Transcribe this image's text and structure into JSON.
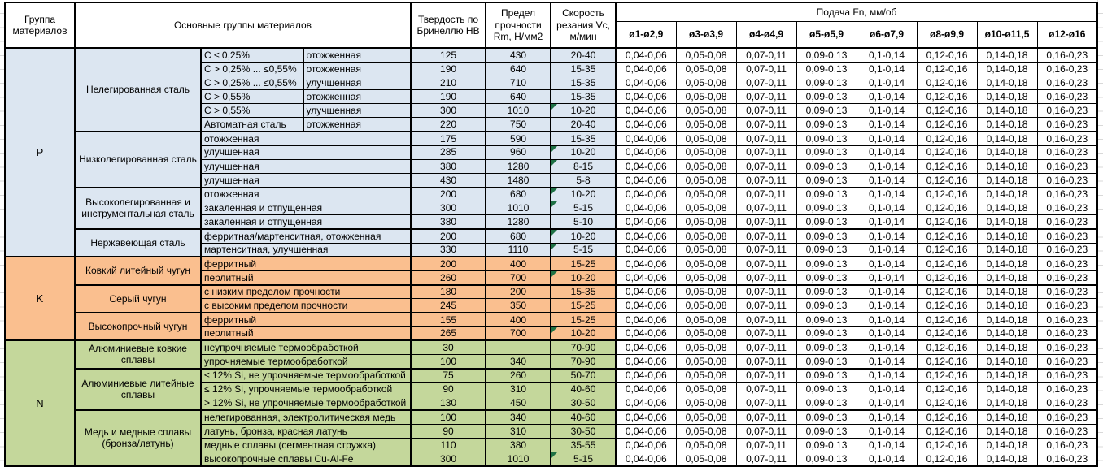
{
  "header": {
    "col_group": "Группа материалов",
    "col_materials": "Основные группы материалов",
    "col_hardness": "Твердость по Бринеллю НВ",
    "col_strength": "Предел прочности Rm, Н/мм2",
    "col_speed": "Скорость резания Vc, м/мин",
    "feed_title": "Подача Fn, мм/об",
    "feed_cols": [
      "ø1-ø2,9",
      "ø3-ø3,9",
      "ø4-ø4,9",
      "ø5-ø5,9",
      "ø6-ø7,9",
      "ø8-ø9,9",
      "ø10-ø11,5",
      "ø12-ø16"
    ]
  },
  "feed_values": [
    "0,04-0,06",
    "0,05-0,08",
    "0,07-0,11",
    "0,09-0,13",
    "0,1-0,14",
    "0,12-0,16",
    "0,14-0,18",
    "0,16-0,23"
  ],
  "colors": {
    "group_p_fill": "#dce6f1",
    "group_k_fill": "#fabf8f",
    "group_n_fill": "#c4d79b",
    "note_indicator": "#1F7145",
    "border": "#000000"
  },
  "groups": [
    {
      "letter": "P",
      "fill": "#dce6f1",
      "subgroups": [
        {
          "name": "Нелегированная сталь",
          "rows": [
            {
              "cond": "C ≤ 0,25%",
              "state": "отожженная",
              "hb": "125",
              "rm": "430",
              "vc": "20-40",
              "note": false
            },
            {
              "cond": "C > 0,25% ... ≤0,55%",
              "state": "отожженная",
              "hb": "190",
              "rm": "640",
              "vc": "15-35",
              "note": false
            },
            {
              "cond": "C > 0,25% ... ≤0,55%",
              "state": "улучшенная",
              "hb": "210",
              "rm": "710",
              "vc": "15-35",
              "note": false
            },
            {
              "cond": "C > 0,55%",
              "state": "отожженная",
              "hb": "190",
              "rm": "640",
              "vc": "15-35",
              "note": false
            },
            {
              "cond": "C > 0,55%",
              "state": "улучшенная",
              "hb": "300",
              "rm": "1010",
              "vc": "10-20",
              "note": true
            },
            {
              "cond": "Автоматная сталь",
              "state": "отожженная",
              "hb": "220",
              "rm": "750",
              "vc": "20-40",
              "note": false
            }
          ]
        },
        {
          "name": "Низколегированная сталь",
          "rows": [
            {
              "state": "отожженная",
              "hb": "175",
              "rm": "590",
              "vc": "15-35",
              "note": false
            },
            {
              "state": "улучшенная",
              "hb": "285",
              "rm": "960",
              "vc": "10-20",
              "note": true
            },
            {
              "state": "улучшенная",
              "hb": "380",
              "rm": "1280",
              "vc": "8-15",
              "note": true
            },
            {
              "state": "улучшенная",
              "hb": "430",
              "rm": "1480",
              "vc": "5-8",
              "note": false
            }
          ]
        },
        {
          "name": "Высоколегированная и инструментальная сталь",
          "rows": [
            {
              "state": "отожженная",
              "hb": "200",
              "rm": "680",
              "vc": "10-20",
              "note": true
            },
            {
              "state": "закаленная и отпущенная",
              "hb": "300",
              "rm": "1010",
              "vc": "5-15",
              "note": true
            },
            {
              "state": "закаленная и отпущенная",
              "hb": "380",
              "rm": "1280",
              "vc": "5-10",
              "note": false
            }
          ]
        },
        {
          "name": "Нержавеющая сталь",
          "rows": [
            {
              "state": "ферритная/мартенситная, отожженная",
              "hb": "200",
              "rm": "680",
              "vc": "10-20",
              "note": true
            },
            {
              "state": "мартенситная, улучшенная",
              "hb": "330",
              "rm": "1110",
              "vc": "5-15",
              "note": true
            }
          ]
        }
      ]
    },
    {
      "letter": "K",
      "fill": "#fabf8f",
      "subgroups": [
        {
          "name": "Ковкий литейный чугун",
          "rows": [
            {
              "state": "ферритный",
              "hb": "200",
              "rm": "400",
              "vc": "15-25",
              "note": false
            },
            {
              "state": "перлитный",
              "hb": "260",
              "rm": "700",
              "vc": "10-20",
              "note": true
            }
          ]
        },
        {
          "name": "Серый чугун",
          "rows": [
            {
              "state": "с низким пределом прочности",
              "hb": "180",
              "rm": "200",
              "vc": "15-35",
              "note": false
            },
            {
              "state": "с высоким пределом прочности",
              "hb": "245",
              "rm": "350",
              "vc": "15-25",
              "note": false
            }
          ]
        },
        {
          "name": "Высокопрочный чугун",
          "rows": [
            {
              "state": "ферритный",
              "hb": "155",
              "rm": "400",
              "vc": "15-25",
              "note": false
            },
            {
              "state": "перлитный",
              "hb": "265",
              "rm": "700",
              "vc": "10-20",
              "note": true
            }
          ]
        }
      ]
    },
    {
      "letter": "N",
      "fill": "#c4d79b",
      "subgroups": [
        {
          "name": "Алюминиевые ковкие сплавы",
          "rows": [
            {
              "state": "неупрочняемые термообработкой",
              "hb": "30",
              "rm": "",
              "vc": "70-90",
              "note": false
            },
            {
              "state": "упрочняемые термообработкой",
              "hb": "100",
              "rm": "340",
              "vc": "70-90",
              "note": false
            }
          ]
        },
        {
          "name": "Алюминиевые литейные сплавы",
          "rows": [
            {
              "state": "≤ 12% Si, не упрочняемые термообработкой",
              "hb": "75",
              "rm": "260",
              "vc": "50-70",
              "note": false
            },
            {
              "state": "≤ 12% Si, упрочняемые термообработкой",
              "hb": "90",
              "rm": "310",
              "vc": "40-60",
              "note": false
            },
            {
              "state": "> 12% Si, не упрочняемые термообработкой",
              "hb": "130",
              "rm": "450",
              "vc": "30-50",
              "note": false
            }
          ]
        },
        {
          "name": "Медь и медные сплавы (бронза/латунь)",
          "rows": [
            {
              "state": "нелегированная, электролитическая медь",
              "hb": "100",
              "rm": "340",
              "vc": "40-60",
              "note": false
            },
            {
              "state": "латунь, бронза, красная латунь",
              "hb": "90",
              "rm": "310",
              "vc": "30-50",
              "note": false
            },
            {
              "state": "медные сплавы (сегментная стружка)",
              "hb": "110",
              "rm": "380",
              "vc": "35-55",
              "note": false
            },
            {
              "state": "высокопрочные сплавы Cu-Al-Fe",
              "hb": "300",
              "rm": "1010",
              "vc": "5-15",
              "note": true
            }
          ]
        }
      ]
    }
  ]
}
